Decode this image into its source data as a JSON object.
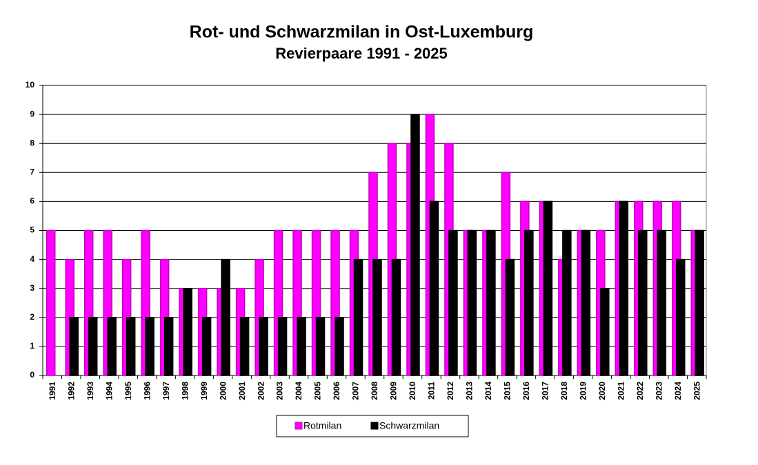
{
  "chart_data": {
    "type": "bar",
    "title": "Rot- und Schwarzmilan in Ost-Luxemburg",
    "subtitle": "Revierpaare 1991 - 2025",
    "categories": [
      "1991",
      "1992",
      "1993",
      "1994",
      "1995",
      "1996",
      "1997",
      "1998",
      "1999",
      "2000",
      "2001",
      "2002",
      "2003",
      "2004",
      "2005",
      "2006",
      "2007",
      "2008",
      "2009",
      "2010",
      "2011",
      "2012",
      "2013",
      "2014",
      "2015",
      "2016",
      "2017",
      "2018",
      "2019",
      "2020",
      "2021",
      "2022",
      "2023",
      "2024",
      "2025"
    ],
    "series": [
      {
        "name": "Rotmilan",
        "color": "#ff00ff",
        "values": [
          5,
          4,
          5,
          5,
          4,
          5,
          4,
          3,
          3,
          3,
          3,
          4,
          5,
          5,
          5,
          5,
          5,
          7,
          8,
          8,
          9,
          8,
          5,
          5,
          7,
          6,
          6,
          4,
          5,
          5,
          6,
          6,
          6,
          6,
          5
        ]
      },
      {
        "name": "Schwarzmilan",
        "color": "#000000",
        "values": [
          0,
          2,
          2,
          2,
          2,
          2,
          2,
          3,
          2,
          4,
          2,
          2,
          2,
          2,
          2,
          2,
          4,
          4,
          4,
          9,
          6,
          5,
          5,
          5,
          4,
          5,
          6,
          5,
          5,
          3,
          6,
          5,
          5,
          4,
          5
        ]
      }
    ],
    "ylim": [
      0,
      10
    ],
    "yticks": [
      0,
      1,
      2,
      3,
      4,
      5,
      6,
      7,
      8,
      9,
      10
    ],
    "grid": true,
    "legend": "bottom"
  }
}
